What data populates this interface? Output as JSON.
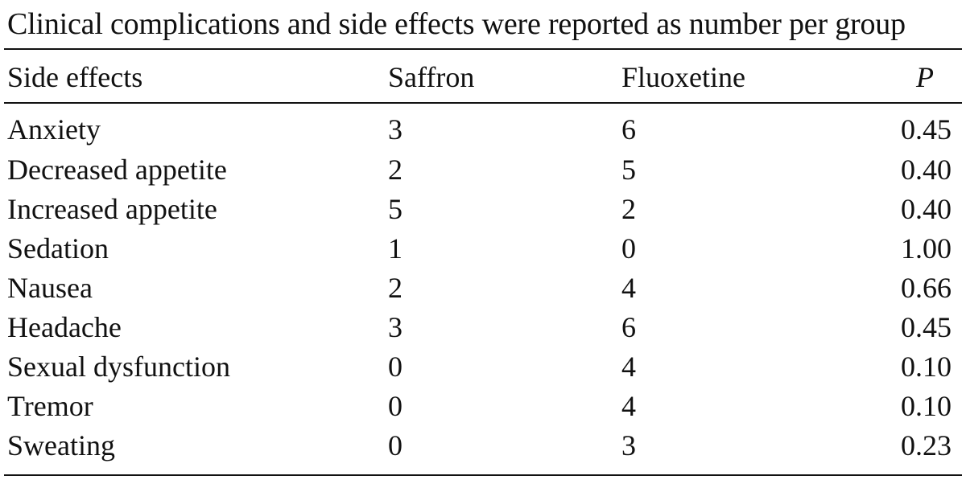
{
  "caption": "Clinical complications and side effects were reported as number per group",
  "table": {
    "headers": {
      "side_effects": "Side effects",
      "saffron": "Saffron",
      "fluoxetine": "Fluoxetine",
      "p": "P"
    },
    "rows": [
      {
        "name": "Anxiety",
        "saffron": "3",
        "fluoxetine": "6",
        "p": "0.45"
      },
      {
        "name": "Decreased appetite",
        "saffron": "2",
        "fluoxetine": "5",
        "p": "0.40"
      },
      {
        "name": "Increased appetite",
        "saffron": "5",
        "fluoxetine": "2",
        "p": "0.40"
      },
      {
        "name": "Sedation",
        "saffron": "1",
        "fluoxetine": "0",
        "p": "1.00"
      },
      {
        "name": "Nausea",
        "saffron": "2",
        "fluoxetine": "4",
        "p": "0.66"
      },
      {
        "name": "Headache",
        "saffron": "3",
        "fluoxetine": "6",
        "p": "0.45"
      },
      {
        "name": "Sexual dysfunction",
        "saffron": "0",
        "fluoxetine": "4",
        "p": "0.10"
      },
      {
        "name": "Tremor",
        "saffron": "0",
        "fluoxetine": "4",
        "p": "0.10"
      },
      {
        "name": "Sweating",
        "saffron": "0",
        "fluoxetine": "3",
        "p": "0.23"
      }
    ]
  }
}
